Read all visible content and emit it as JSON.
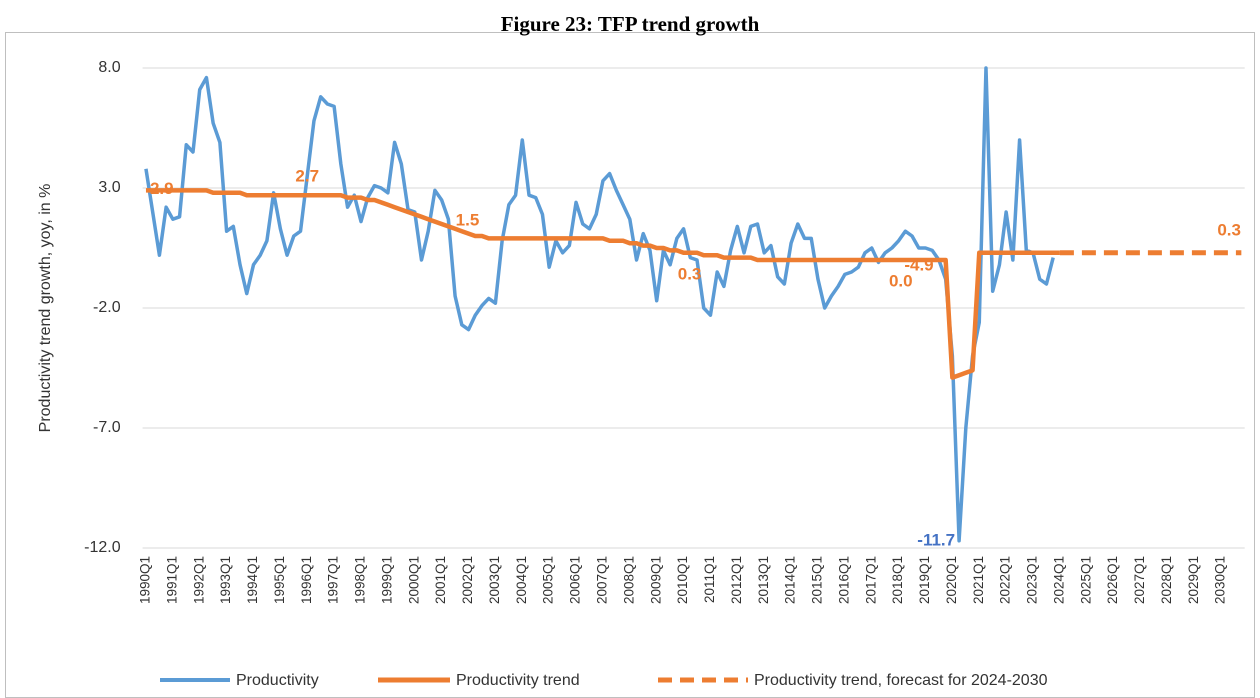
{
  "chart_data": {
    "type": "line",
    "title": "Figure 23: TFP trend growth",
    "y_label": "Productivity trend growth, yoy, in %",
    "categories": [
      "1990Q1",
      null,
      null,
      null,
      "1991Q1",
      null,
      null,
      null,
      "1992Q1",
      null,
      null,
      null,
      "1993Q1",
      null,
      null,
      null,
      "1994Q1",
      null,
      null,
      null,
      "1995Q1",
      null,
      null,
      null,
      "1996Q1",
      null,
      null,
      null,
      "1997Q1",
      null,
      null,
      null,
      "1998Q1",
      null,
      null,
      null,
      "1999Q1",
      null,
      null,
      null,
      "2000Q1",
      null,
      null,
      null,
      "2001Q1",
      null,
      null,
      null,
      "2002Q1",
      null,
      null,
      null,
      "2003Q1",
      null,
      null,
      null,
      "2004Q1",
      null,
      null,
      null,
      "2005Q1",
      null,
      null,
      null,
      "2006Q1",
      null,
      null,
      null,
      "2007Q1",
      null,
      null,
      null,
      "2008Q1",
      null,
      null,
      null,
      "2009Q1",
      null,
      null,
      null,
      "2010Q1",
      null,
      null,
      null,
      "2011Q1",
      null,
      null,
      null,
      "2012Q1",
      null,
      null,
      null,
      "2013Q1",
      null,
      null,
      null,
      "2014Q1",
      null,
      null,
      null,
      "2015Q1",
      null,
      null,
      null,
      "2016Q1",
      null,
      null,
      null,
      "2017Q1",
      null,
      null,
      null,
      "2018Q1",
      null,
      null,
      null,
      "2019Q1",
      null,
      null,
      null,
      "2020Q1",
      null,
      null,
      null,
      "2021Q1",
      null,
      null,
      null,
      "2022Q1",
      null,
      null,
      null,
      "2023Q1",
      null,
      null,
      null,
      "2024Q1",
      null,
      null,
      null,
      "2025Q1",
      null,
      null,
      null,
      "2026Q1",
      null,
      null,
      null,
      "2027Q1",
      null,
      null,
      null,
      "2028Q1",
      null,
      null,
      null,
      "2029Q1",
      null,
      null,
      null,
      "2030Q1",
      null,
      null,
      null
    ],
    "series": [
      {
        "name": "Productivity",
        "color": "#5b9bd5",
        "style": "solid",
        "values": [
          3.8,
          2.0,
          0.2,
          2.2,
          1.7,
          1.8,
          4.8,
          4.5,
          7.1,
          7.6,
          5.7,
          4.9,
          1.2,
          1.4,
          -0.2,
          -1.4,
          -0.2,
          0.2,
          0.8,
          2.8,
          1.3,
          0.2,
          1.0,
          1.2,
          3.5,
          5.8,
          6.8,
          6.5,
          6.4,
          4.0,
          2.2,
          2.7,
          1.6,
          2.6,
          3.1,
          3.0,
          2.8,
          4.9,
          4.0,
          2.1,
          2.0,
          0.0,
          1.2,
          2.9,
          2.5,
          1.7,
          -1.5,
          -2.7,
          -2.9,
          -2.3,
          -1.9,
          -1.6,
          -1.8,
          0.8,
          2.3,
          2.7,
          5.0,
          2.7,
          2.6,
          1.9,
          -0.3,
          0.8,
          0.3,
          0.6,
          2.4,
          1.5,
          1.3,
          1.9,
          3.3,
          3.6,
          2.9,
          2.3,
          1.7,
          0.0,
          1.1,
          0.4,
          -1.7,
          0.4,
          -0.2,
          0.9,
          1.3,
          0.1,
          0.0,
          -2.0,
          -2.3,
          -0.5,
          -1.1,
          0.4,
          1.4,
          0.3,
          1.4,
          1.5,
          0.3,
          0.6,
          -0.7,
          -1.0,
          0.7,
          1.5,
          0.9,
          0.9,
          -0.8,
          -2.0,
          -1.5,
          -1.1,
          -0.6,
          -0.5,
          -0.3,
          0.3,
          0.5,
          -0.1,
          0.3,
          0.5,
          0.8,
          1.2,
          1.0,
          0.5,
          0.5,
          0.4,
          0.0,
          -0.8,
          -4.0,
          -11.7,
          -7.0,
          -4.0,
          -2.6,
          8.0,
          -1.3,
          -0.2,
          2.0,
          0.0,
          5.0,
          0.4,
          0.3,
          -0.8,
          -1.0,
          0.1,
          null,
          null,
          null,
          null,
          null,
          null,
          null,
          null,
          null,
          null,
          null,
          null,
          null,
          null,
          null,
          null,
          null,
          null,
          null,
          null,
          null,
          null,
          null,
          null,
          null,
          null,
          null,
          null
        ],
        "value_labels": [
          null,
          null,
          null,
          null,
          null,
          null,
          null,
          null,
          null,
          null,
          null,
          null,
          null,
          null,
          null,
          null,
          null,
          null,
          null,
          null,
          null,
          null,
          null,
          null,
          null,
          null,
          null,
          null,
          null,
          null,
          null,
          null,
          null,
          null,
          null,
          null,
          null,
          null,
          null,
          null,
          null,
          null,
          null,
          null,
          null,
          null,
          null,
          null,
          null,
          null,
          null,
          null,
          null,
          null,
          null,
          null,
          null,
          null,
          null,
          null,
          null,
          null,
          null,
          null,
          null,
          null,
          null,
          null,
          null,
          null,
          null,
          null,
          null,
          null,
          null,
          null,
          null,
          null,
          null,
          null,
          null,
          null,
          null,
          null,
          null,
          null,
          null,
          null,
          null,
          null,
          null,
          null,
          null,
          null,
          null,
          null,
          null,
          null,
          null,
          null,
          null,
          null,
          null,
          null,
          null,
          null,
          null,
          null,
          null,
          null,
          null,
          null,
          null,
          null,
          null,
          null,
          null,
          null,
          null,
          null,
          null,
          "-11.7",
          null,
          null,
          null,
          null,
          null,
          null,
          null,
          null,
          null,
          null,
          null,
          null,
          null,
          null,
          null,
          null,
          null,
          null,
          null,
          null,
          null,
          null,
          null,
          null,
          null,
          null,
          null,
          null,
          null,
          null,
          null,
          null,
          null,
          null,
          null,
          null,
          null,
          null,
          null,
          null
        ]
      },
      {
        "name": "Productivity trend",
        "color": "#ed7d31",
        "style": "solid",
        "values": [
          2.9,
          2.9,
          2.9,
          2.9,
          2.9,
          2.9,
          2.9,
          2.9,
          2.9,
          2.9,
          2.8,
          2.8,
          2.8,
          2.8,
          2.8,
          2.7,
          2.7,
          2.7,
          2.7,
          2.7,
          2.7,
          2.7,
          2.7,
          2.7,
          2.7,
          2.7,
          2.7,
          2.7,
          2.7,
          2.7,
          2.6,
          2.6,
          2.6,
          2.5,
          2.5,
          2.4,
          2.3,
          2.2,
          2.1,
          2.0,
          1.9,
          1.8,
          1.7,
          1.6,
          1.5,
          1.4,
          1.3,
          1.2,
          1.1,
          1.0,
          1.0,
          0.9,
          0.9,
          0.9,
          0.9,
          0.9,
          0.9,
          0.9,
          0.9,
          0.9,
          0.9,
          0.9,
          0.9,
          0.9,
          0.9,
          0.9,
          0.9,
          0.9,
          0.9,
          0.8,
          0.8,
          0.8,
          0.7,
          0.7,
          0.6,
          0.6,
          0.5,
          0.5,
          0.4,
          0.4,
          0.3,
          0.3,
          0.3,
          0.2,
          0.2,
          0.2,
          0.1,
          0.1,
          0.1,
          0.1,
          0.1,
          0.0,
          0.0,
          0.0,
          0.0,
          0.0,
          0.0,
          0.0,
          0.0,
          0.0,
          0.0,
          0.0,
          0.0,
          0.0,
          0.0,
          0.0,
          0.0,
          0.0,
          0.0,
          0.0,
          0.0,
          0.0,
          0.0,
          0.0,
          0.0,
          0.0,
          0.0,
          0.0,
          0.0,
          0.0,
          -4.9,
          -4.8,
          -4.7,
          -4.6,
          0.3,
          0.3,
          0.3,
          0.3,
          0.3,
          0.3,
          0.3,
          0.3,
          0.3,
          0.3,
          0.3,
          0.3,
          0.3,
          null,
          null,
          null,
          null,
          null,
          null,
          null,
          null,
          null,
          null,
          null,
          null,
          null,
          null,
          null,
          null,
          null,
          null,
          null,
          null,
          null,
          null,
          null,
          null,
          null,
          null,
          null
        ],
        "value_labels": [
          "2.9",
          null,
          null,
          null,
          null,
          null,
          null,
          null,
          null,
          null,
          null,
          null,
          null,
          null,
          null,
          null,
          null,
          null,
          null,
          null,
          null,
          null,
          null,
          null,
          "2.7",
          null,
          null,
          null,
          null,
          null,
          null,
          null,
          null,
          null,
          null,
          null,
          null,
          null,
          null,
          null,
          null,
          null,
          null,
          null,
          "1.5",
          null,
          null,
          null,
          null,
          null,
          null,
          null,
          null,
          null,
          null,
          null,
          null,
          null,
          null,
          null,
          null,
          null,
          null,
          null,
          null,
          null,
          null,
          null,
          null,
          null,
          null,
          null,
          null,
          null,
          null,
          null,
          null,
          null,
          null,
          null,
          "0.3",
          null,
          null,
          null,
          null,
          null,
          null,
          null,
          null,
          null,
          null,
          null,
          null,
          null,
          null,
          null,
          null,
          null,
          null,
          null,
          null,
          null,
          null,
          null,
          null,
          null,
          null,
          null,
          null,
          null,
          null,
          null,
          null,
          null,
          null,
          "0.0",
          null,
          null,
          null,
          "-4.9",
          null,
          null,
          null,
          null,
          null,
          null,
          null,
          null,
          null,
          null,
          null,
          null,
          null,
          null,
          null,
          null,
          null,
          null,
          null,
          null,
          null,
          null,
          null,
          null,
          null,
          null,
          null,
          null,
          null,
          null,
          null,
          null,
          null,
          null,
          null,
          null,
          null,
          null,
          null,
          null,
          null,
          null,
          null
        ]
      },
      {
        "name": "Productivity trend, forecast for 2024-2030",
        "color": "#ed7d31",
        "style": "dashed",
        "values": [
          null,
          null,
          null,
          null,
          null,
          null,
          null,
          null,
          null,
          null,
          null,
          null,
          null,
          null,
          null,
          null,
          null,
          null,
          null,
          null,
          null,
          null,
          null,
          null,
          null,
          null,
          null,
          null,
          null,
          null,
          null,
          null,
          null,
          null,
          null,
          null,
          null,
          null,
          null,
          null,
          null,
          null,
          null,
          null,
          null,
          null,
          null,
          null,
          null,
          null,
          null,
          null,
          null,
          null,
          null,
          null,
          null,
          null,
          null,
          null,
          null,
          null,
          null,
          null,
          null,
          null,
          null,
          null,
          null,
          null,
          null,
          null,
          null,
          null,
          null,
          null,
          null,
          null,
          null,
          null,
          null,
          null,
          null,
          null,
          null,
          null,
          null,
          null,
          null,
          null,
          null,
          null,
          null,
          null,
          null,
          null,
          null,
          null,
          null,
          null,
          null,
          null,
          null,
          null,
          null,
          null,
          null,
          null,
          null,
          null,
          null,
          null,
          null,
          null,
          null,
          null,
          null,
          null,
          null,
          null,
          null,
          null,
          null,
          null,
          null,
          null,
          null,
          null,
          null,
          null,
          null,
          null,
          null,
          null,
          null,
          null,
          0.3,
          0.3,
          0.3,
          0.3,
          0.3,
          0.3,
          0.3,
          0.3,
          0.3,
          0.3,
          0.3,
          0.3,
          0.3,
          0.3,
          0.3,
          0.3,
          0.3,
          0.3,
          0.3,
          0.3,
          0.3,
          0.3,
          0.3,
          0.3,
          0.3,
          0.3,
          0.3,
          0.3
        ],
        "value_labels": [
          null,
          null,
          null,
          null,
          null,
          null,
          null,
          null,
          null,
          null,
          null,
          null,
          null,
          null,
          null,
          null,
          null,
          null,
          null,
          null,
          null,
          null,
          null,
          null,
          null,
          null,
          null,
          null,
          null,
          null,
          null,
          null,
          null,
          null,
          null,
          null,
          null,
          null,
          null,
          null,
          null,
          null,
          null,
          null,
          null,
          null,
          null,
          null,
          null,
          null,
          null,
          null,
          null,
          null,
          null,
          null,
          null,
          null,
          null,
          null,
          null,
          null,
          null,
          null,
          null,
          null,
          null,
          null,
          null,
          null,
          null,
          null,
          null,
          null,
          null,
          null,
          null,
          null,
          null,
          null,
          null,
          null,
          null,
          null,
          null,
          null,
          null,
          null,
          null,
          null,
          null,
          null,
          null,
          null,
          null,
          null,
          null,
          null,
          null,
          null,
          null,
          null,
          null,
          null,
          null,
          null,
          null,
          null,
          null,
          null,
          null,
          null,
          null,
          null,
          null,
          null,
          null,
          null,
          null,
          null,
          null,
          null,
          null,
          null,
          null,
          null,
          null,
          null,
          null,
          null,
          null,
          null,
          null,
          null,
          null,
          null,
          null,
          null,
          null,
          null,
          null,
          null,
          null,
          null,
          null,
          null,
          null,
          null,
          null,
          null,
          null,
          null,
          null,
          null,
          null,
          null,
          null,
          null,
          null,
          null,
          "0.3",
          null,
          null,
          null
        ]
      }
    ],
    "ylim": [
      -12,
      8
    ],
    "yticks": [
      {
        "value": -12,
        "label": "-12.0"
      },
      {
        "value": -7,
        "label": "-7.0"
      },
      {
        "value": -2,
        "label": "-2.0"
      },
      {
        "value": 3,
        "label": "3.0"
      },
      {
        "value": 8,
        "label": "8.0"
      }
    ],
    "grid": true,
    "legend": "bottom"
  }
}
